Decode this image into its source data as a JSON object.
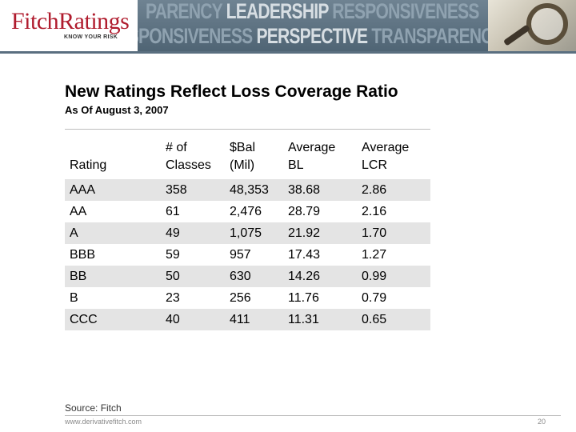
{
  "header": {
    "logo_text": "FitchRatings",
    "logo_tagline": "KNOW YOUR RISK",
    "banner_line1": [
      "PARENCY",
      "LEADERSHIP",
      "RESPONSIVENESS"
    ],
    "banner_line2": [
      "RESPONSIVENESS",
      "PERSPECTIVE",
      "TRANSPARENCY"
    ]
  },
  "slide": {
    "title": "New Ratings Reflect Loss Coverage Ratio",
    "subtitle": "As Of August 3, 2007"
  },
  "table": {
    "headers": [
      {
        "line1": "",
        "line2": "Rating"
      },
      {
        "line1": "# of",
        "line2": "Classes"
      },
      {
        "line1": "$Bal",
        "line2": "(Mil)"
      },
      {
        "line1": "Average",
        "line2": "BL"
      },
      {
        "line1": "Average",
        "line2": "LCR"
      }
    ],
    "rows": [
      [
        "AAA",
        "358",
        "48,353",
        "38.68",
        "2.86"
      ],
      [
        "AA",
        "61",
        "2,476",
        "28.79",
        "2.16"
      ],
      [
        "A",
        "49",
        "1,075",
        "21.92",
        "1.70"
      ],
      [
        "BBB",
        "59",
        "957",
        "17.43",
        "1.27"
      ],
      [
        "BB",
        "50",
        "630",
        "14.26",
        "0.99"
      ],
      [
        "B",
        "23",
        "256",
        "11.76",
        "0.79"
      ],
      [
        "CCC",
        "40",
        "411",
        "11.31",
        "0.65"
      ]
    ]
  },
  "footer": {
    "source": "Source: Fitch",
    "url": "www.derivativefitch.com",
    "page_number": "20"
  },
  "colors": {
    "brand_red": "#b01c2e",
    "banner_blue": "#5a6f80",
    "row_shade": "#e4e4e4"
  }
}
